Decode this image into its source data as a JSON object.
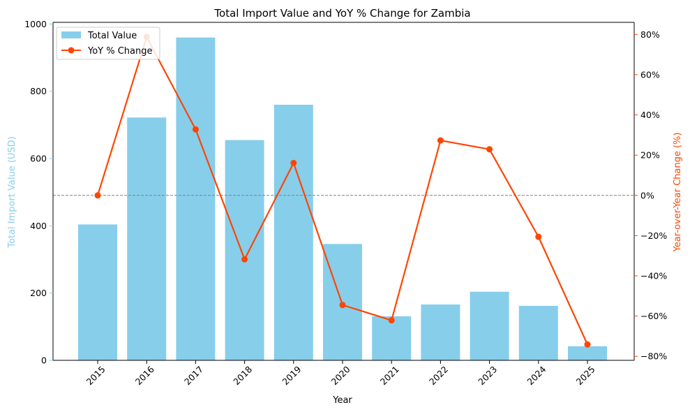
{
  "chart_data": {
    "type": "bar",
    "title": "Total Import Value and YoY % Change for Zambia",
    "xlabel": "Year",
    "ylabel_left": "Total Import Value (USD)",
    "ylabel_right": "Year-over-Year Change (%)",
    "categories": [
      "2015",
      "2016",
      "2017",
      "2018",
      "2019",
      "2020",
      "2021",
      "2022",
      "2023",
      "2024",
      "2025"
    ],
    "series": [
      {
        "name": "Total Value",
        "type": "bar",
        "axis": "left",
        "color": "#87CEEB",
        "values": [
          404,
          722,
          960,
          655,
          760,
          346,
          131,
          166,
          204,
          162,
          42
        ]
      },
      {
        "name": "YoY % Change",
        "type": "line",
        "axis": "right",
        "color": "#FF4500",
        "values": [
          0,
          78.7,
          32.8,
          -31.8,
          16.1,
          -54.5,
          -62.1,
          27.3,
          22.9,
          -20.6,
          -74.1
        ]
      }
    ],
    "ylim_left": [
      0,
      1005
    ],
    "ylim_right": [
      -82,
      86
    ],
    "yticks_left": [
      0,
      200,
      400,
      600,
      800,
      1000
    ],
    "yticks_right": [
      -80,
      -60,
      -40,
      -20,
      0,
      20,
      40,
      60,
      80
    ],
    "yticks_right_labels": [
      "−80%",
      "−60%",
      "−40%",
      "−20%",
      "0%",
      "20%",
      "40%",
      "60%",
      "80%"
    ],
    "zero_reference_line": true,
    "legend_position": "top-left",
    "grid": false
  }
}
